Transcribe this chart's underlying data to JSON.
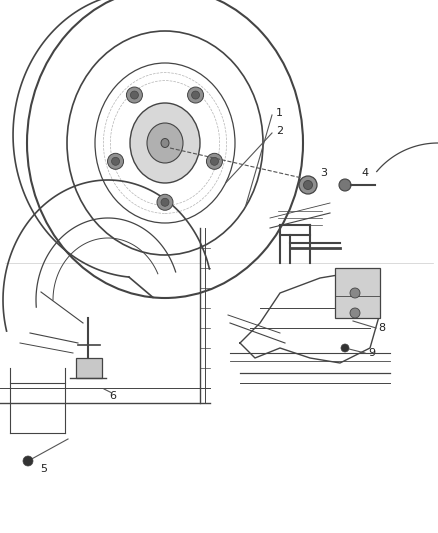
{
  "background_color": "#ffffff",
  "line_color": "#444444",
  "callout_color": "#555555",
  "fig_width": 4.38,
  "fig_height": 5.33,
  "dpi": 100
}
